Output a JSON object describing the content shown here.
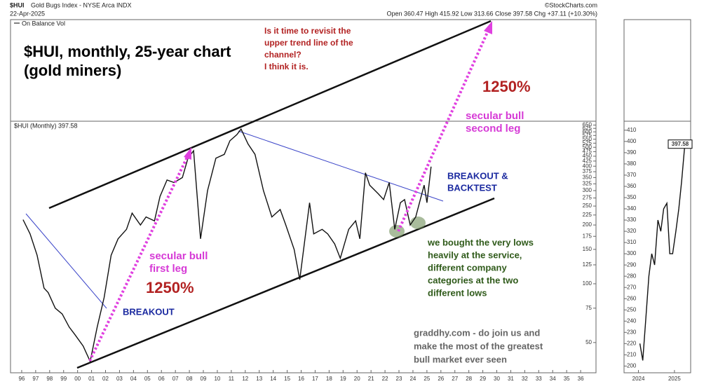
{
  "header": {
    "symbol": "$HUI",
    "name": "Gold Bugs Index - NYSE Arca INDX",
    "date": "22-Apr-2025",
    "quote": "Open 360.47  High 415.92  Low 313.66  Close 397.58  Chg +37.11 (+10.30%)",
    "credit": "©StockCharts.com"
  },
  "annotations": {
    "chart_title": [
      "$HUI, monthly, 25-year chart",
      "(gold miners)"
    ],
    "question": [
      "Is it time to revisit the",
      "upper trend line of the",
      "channel?",
      "I think it is."
    ],
    "gain_top": "1250%",
    "bull_second": [
      "secular bull",
      "second leg"
    ],
    "breakout_backtest": [
      "BREAKOUT &",
      "BACKTEST"
    ],
    "bought": [
      "we bought the very lows",
      "heavily at the service,",
      "different company",
      "categories at the two",
      "different lows"
    ],
    "bull_first": [
      "secular bull",
      "first leg"
    ],
    "gain_bottom": "1250%",
    "breakout": "BREAKOUT",
    "promo": [
      "graddhy.com - do join us and",
      "make the most of the greatest",
      "bull market ever seen"
    ]
  },
  "chart_data": [
    {
      "type": "line",
      "title": "$HUI (Monthly) 397.58",
      "indicator": "On Balance Vol",
      "color": "#111111",
      "log_scale": true,
      "x": [
        1996.1,
        1996.6,
        1997.1,
        1997.6,
        1997.9,
        1998.4,
        1998.9,
        1999.4,
        1999.8,
        2000.4,
        2000.9,
        2001.4,
        2001.9,
        2002.4,
        2002.9,
        2003.5,
        2003.9,
        2004.5,
        2004.9,
        2005.5,
        2005.9,
        2006.4,
        2006.9,
        2007.5,
        2007.9,
        2008.3,
        2008.8,
        2009.3,
        2009.9,
        2010.5,
        2010.9,
        2011.4,
        2011.7,
        2012.2,
        2012.7,
        2013.3,
        2013.9,
        2014.5,
        2014.9,
        2015.5,
        2015.9,
        2016.6,
        2016.9,
        2017.5,
        2017.9,
        2018.4,
        2018.8,
        2019.4,
        2019.9,
        2020.2,
        2020.6,
        2020.9,
        2021.5,
        2021.9,
        2022.3,
        2022.7,
        2023.1,
        2023.4,
        2023.8,
        2024.2,
        2024.8,
        2025.0,
        2025.3
      ],
      "values": [
        213,
        180,
        140,
        95,
        90,
        75,
        70,
        60,
        55,
        48,
        40,
        60,
        85,
        140,
        170,
        190,
        230,
        200,
        220,
        210,
        280,
        340,
        330,
        350,
        440,
        480,
        170,
        300,
        440,
        460,
        540,
        580,
        620,
        520,
        460,
        300,
        220,
        240,
        200,
        150,
        105,
        260,
        180,
        190,
        180,
        160,
        135,
        190,
        210,
        170,
        370,
        320,
        290,
        270,
        330,
        190,
        260,
        270,
        200,
        220,
        320,
        260,
        398
      ],
      "xlim": [
        1995.2,
        2037.1
      ],
      "ylim": [
        35,
        680
      ],
      "xticks": [
        {
          "value": 1996,
          "label": "96"
        },
        {
          "value": 1997,
          "label": "97"
        },
        {
          "value": 1998,
          "label": "98"
        },
        {
          "value": 1999,
          "label": "99"
        },
        {
          "value": 2000,
          "label": "00"
        },
        {
          "value": 2001,
          "label": "01"
        },
        {
          "value": 2002,
          "label": "02"
        },
        {
          "value": 2003,
          "label": "03"
        },
        {
          "value": 2004,
          "label": "04"
        },
        {
          "value": 2005,
          "label": "05"
        },
        {
          "value": 2006,
          "label": "06"
        },
        {
          "value": 2007,
          "label": "07"
        },
        {
          "value": 2008,
          "label": "08"
        },
        {
          "value": 2009,
          "label": "09"
        },
        {
          "value": 2010,
          "label": "10"
        },
        {
          "value": 2011,
          "label": "11"
        },
        {
          "value": 2012,
          "label": "12"
        },
        {
          "value": 2013,
          "label": "13"
        },
        {
          "value": 2014,
          "label": "14"
        },
        {
          "value": 2015,
          "label": "15"
        },
        {
          "value": 2016,
          "label": "16"
        },
        {
          "value": 2017,
          "label": "17"
        },
        {
          "value": 2018,
          "label": "18"
        },
        {
          "value": 2019,
          "label": "19"
        },
        {
          "value": 2020,
          "label": "20"
        },
        {
          "value": 2021,
          "label": "21"
        },
        {
          "value": 2022,
          "label": "22"
        },
        {
          "value": 2023,
          "label": "23"
        },
        {
          "value": 2024,
          "label": "24"
        },
        {
          "value": 2025,
          "label": "25"
        },
        {
          "value": 2026,
          "label": "26"
        },
        {
          "value": 2027,
          "label": "27"
        },
        {
          "value": 2028,
          "label": "28"
        },
        {
          "value": 2029,
          "label": "29"
        },
        {
          "value": 2030,
          "label": "30"
        },
        {
          "value": 2031,
          "label": "31"
        },
        {
          "value": 2032,
          "label": "32"
        },
        {
          "value": 2033,
          "label": "33"
        },
        {
          "value": 2034,
          "label": "34"
        },
        {
          "value": 2035,
          "label": "35"
        },
        {
          "value": 2036,
          "label": "36"
        }
      ],
      "yticks": [
        50,
        75,
        100,
        125,
        150,
        175,
        200,
        225,
        250,
        275,
        300,
        325,
        350,
        375,
        400,
        425,
        450,
        475,
        500,
        525,
        550,
        575,
        600,
        625,
        650
      ]
    },
    {
      "type": "line",
      "color": "#111111",
      "log_scale": false,
      "last_value": 397.58,
      "x": [
        2024.04,
        2024.12,
        2024.2,
        2024.29,
        2024.37,
        2024.45,
        2024.54,
        2024.62,
        2024.7,
        2024.79,
        2024.87,
        2024.95,
        2025.04,
        2025.12,
        2025.2,
        2025.29
      ],
      "values": [
        220,
        205,
        240,
        280,
        300,
        290,
        330,
        320,
        340,
        345,
        300,
        300,
        320,
        340,
        365,
        398
      ],
      "xlim": [
        2023.6,
        2025.45
      ],
      "ylim": [
        194,
        418
      ],
      "xticks": [
        2024,
        2025
      ],
      "yticks": [
        200,
        210,
        220,
        230,
        240,
        250,
        260,
        270,
        280,
        290,
        300,
        310,
        320,
        330,
        340,
        350,
        360,
        370,
        380,
        390,
        400,
        410
      ]
    }
  ]
}
